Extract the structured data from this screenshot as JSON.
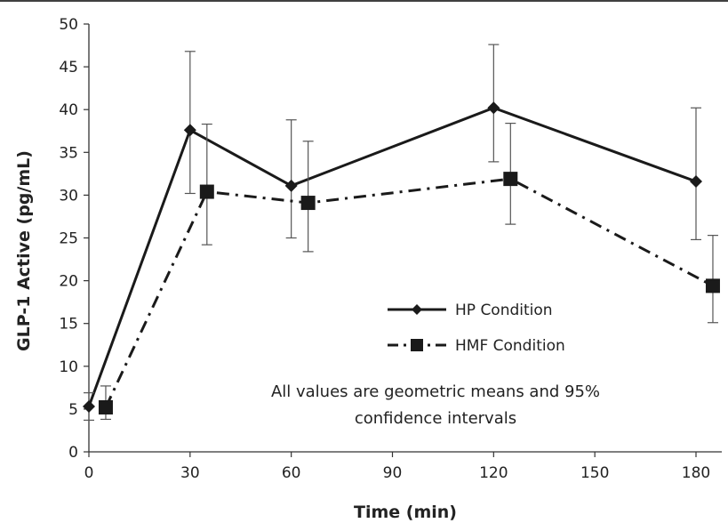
{
  "chart_data": {
    "type": "line",
    "title": "",
    "xlabel": "Time (min)",
    "ylabel": "GLP-1 Active (pg/mL)",
    "xlim": [
      0,
      180
    ],
    "ylim": [
      0,
      50
    ],
    "x_ticks": [
      "0",
      "30",
      "60",
      "90",
      "120",
      "150",
      "180"
    ],
    "y_ticks": [
      "0",
      "5",
      "10",
      "15",
      "20",
      "25",
      "30",
      "35",
      "40",
      "45",
      "50"
    ],
    "grid": false,
    "legend_position": "right-middle",
    "series": [
      {
        "name": "HP Condition",
        "marker": "diamond",
        "line_style": "solid",
        "color": "#1a1a1a",
        "points": [
          {
            "x": 0,
            "y": 5.3,
            "lo": 3.7,
            "hi": 6.9
          },
          {
            "x": 30,
            "y": 37.6,
            "lo": 30.2,
            "hi": 46.8
          },
          {
            "x": 60,
            "y": 31.1,
            "lo": 25.0,
            "hi": 38.8
          },
          {
            "x": 120,
            "y": 40.2,
            "lo": 33.9,
            "hi": 47.6
          },
          {
            "x": 180,
            "y": 31.6,
            "lo": 24.8,
            "hi": 40.2
          }
        ]
      },
      {
        "name": "HMF Condition",
        "marker": "square",
        "line_style": "dash-dot",
        "color": "#1a1a1a",
        "points": [
          {
            "x": 5,
            "y": 5.2,
            "lo": 3.8,
            "hi": 7.7
          },
          {
            "x": 35,
            "y": 30.4,
            "lo": 24.2,
            "hi": 38.3
          },
          {
            "x": 65,
            "y": 29.1,
            "lo": 23.4,
            "hi": 36.3
          },
          {
            "x": 125,
            "y": 31.9,
            "lo": 26.6,
            "hi": 38.4
          },
          {
            "x": 185,
            "y": 19.4,
            "lo": 15.1,
            "hi": 25.3
          }
        ]
      }
    ],
    "annotation": [
      "All values are geometric means and 95%",
      "confidence intervals"
    ]
  }
}
